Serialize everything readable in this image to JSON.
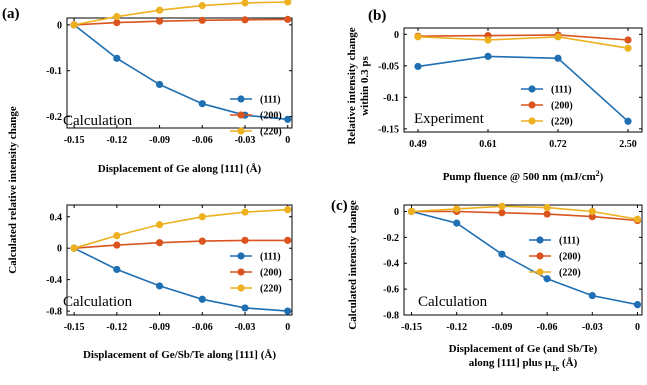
{
  "colors": {
    "s111": "#1f6fb2",
    "s200": "#d9541e",
    "s220": "#edb120"
  },
  "chart_data": [
    {
      "type": "line",
      "panel": "(a)",
      "annotation": "Calculation",
      "xlabel": "Displacement of Ge along [111] (Å)",
      "ylabel": "",
      "x": [
        -0.15,
        -0.12,
        -0.09,
        -0.06,
        -0.03,
        0
      ],
      "xticks": [
        "-0.15",
        "-0.12",
        "-0.09",
        "-0.06",
        "-0.03",
        "0"
      ],
      "xlim": [
        -0.155,
        0.003
      ],
      "ylim": [
        -0.225,
        0.015
      ],
      "yticks": [
        0,
        -0.1,
        -0.2
      ],
      "ytick_labels": [
        "0",
        "-0.1",
        "-0.2"
      ],
      "series": [
        {
          "name": "(111)",
          "values": [
            0,
            -0.073,
            -0.13,
            -0.172,
            -0.197,
            -0.206
          ]
        },
        {
          "name": "(200)",
          "values": [
            0,
            0.005,
            0.008,
            0.01,
            0.011,
            0.012
          ]
        },
        {
          "name": "(220)",
          "values": [
            0,
            0.018,
            0.032,
            0.042,
            0.048,
            0.05
          ]
        }
      ],
      "legend": "right"
    },
    {
      "type": "line",
      "panel": "(b)",
      "annotation": "Experiment",
      "xlabel": "Pump fluence @ 500 nm (mJ/cm²)",
      "ylabel_lines": [
        "Relative intensity change",
        "within 0.3 ps"
      ],
      "x": [
        0.49,
        0.61,
        0.72,
        2.5
      ],
      "xticks": [
        "0.49",
        "0.61",
        "0.72",
        "2.50"
      ],
      "ylim": [
        -0.155,
        0.01
      ],
      "yticks": [
        0,
        -0.05,
        -0.1,
        -0.15
      ],
      "ytick_labels": [
        "0",
        "-0.05",
        "-0.1",
        "-0.15"
      ],
      "series": [
        {
          "name": "(111)",
          "values": [
            -0.051,
            -0.035,
            -0.038,
            -0.138
          ]
        },
        {
          "name": "(200)",
          "values": [
            -0.003,
            -0.002,
            -0.001,
            -0.009
          ]
        },
        {
          "name": "(220)",
          "values": [
            -0.004,
            -0.009,
            -0.004,
            -0.022
          ]
        }
      ],
      "legend": "right"
    },
    {
      "type": "line",
      "panel": "",
      "annotation": "Calculation",
      "xlabel": "Displacement of Ge/Sb/Te along [111] (Å)",
      "ylabel": "",
      "x": [
        -0.15,
        -0.12,
        -0.09,
        -0.06,
        -0.03,
        0
      ],
      "xticks": [
        "-0.15",
        "-0.12",
        "-0.09",
        "-0.06",
        "-0.03",
        "0"
      ],
      "xlim": [
        -0.155,
        0.003
      ],
      "ylim": [
        -0.85,
        0.55
      ],
      "yticks": [
        0.4,
        0,
        -0.4,
        -0.8
      ],
      "ytick_labels": [
        "0.4",
        "0",
        "-0.4",
        "-0.8"
      ],
      "series": [
        {
          "name": "(111)",
          "values": [
            0,
            -0.27,
            -0.48,
            -0.65,
            -0.76,
            -0.8
          ]
        },
        {
          "name": "(200)",
          "values": [
            0,
            0.04,
            0.07,
            0.09,
            0.1,
            0.1
          ]
        },
        {
          "name": "(220)",
          "values": [
            0,
            0.16,
            0.3,
            0.4,
            0.46,
            0.49
          ]
        }
      ],
      "legend": "right"
    },
    {
      "type": "line",
      "panel": "(c)",
      "annotation": "Calculation",
      "xlabel_lines": [
        "Displacement of Ge (and Sb/Te)",
        "along [111] plus μ"
      ],
      "xlabel_sub": "Te",
      "xlabel_tail": " (Å)",
      "ylabel": "Calculated intensity change",
      "x": [
        -0.15,
        -0.12,
        -0.09,
        -0.06,
        -0.03,
        0
      ],
      "xticks": [
        "-0.15",
        "-0.12",
        "-0.09",
        "-0.06",
        "-0.03",
        "0"
      ],
      "xlim": [
        -0.155,
        0.003
      ],
      "ylim": [
        -0.8,
        0.05
      ],
      "yticks": [
        0,
        -0.2,
        -0.4,
        -0.6,
        -0.8
      ],
      "ytick_labels": [
        "0",
        "-0.2",
        "-0.4",
        "-0.6",
        "-0.8"
      ],
      "series": [
        {
          "name": "(111)",
          "values": [
            0,
            -0.09,
            -0.33,
            -0.52,
            -0.65,
            -0.72
          ]
        },
        {
          "name": "(200)",
          "values": [
            0,
            0,
            -0.01,
            -0.02,
            -0.04,
            -0.07
          ]
        },
        {
          "name": "(220)",
          "values": [
            0,
            0.02,
            0.04,
            0.03,
            0,
            -0.06
          ]
        }
      ],
      "legend": "right"
    }
  ],
  "shared": {
    "ylabel_left": "Calculated relative intensity change"
  }
}
